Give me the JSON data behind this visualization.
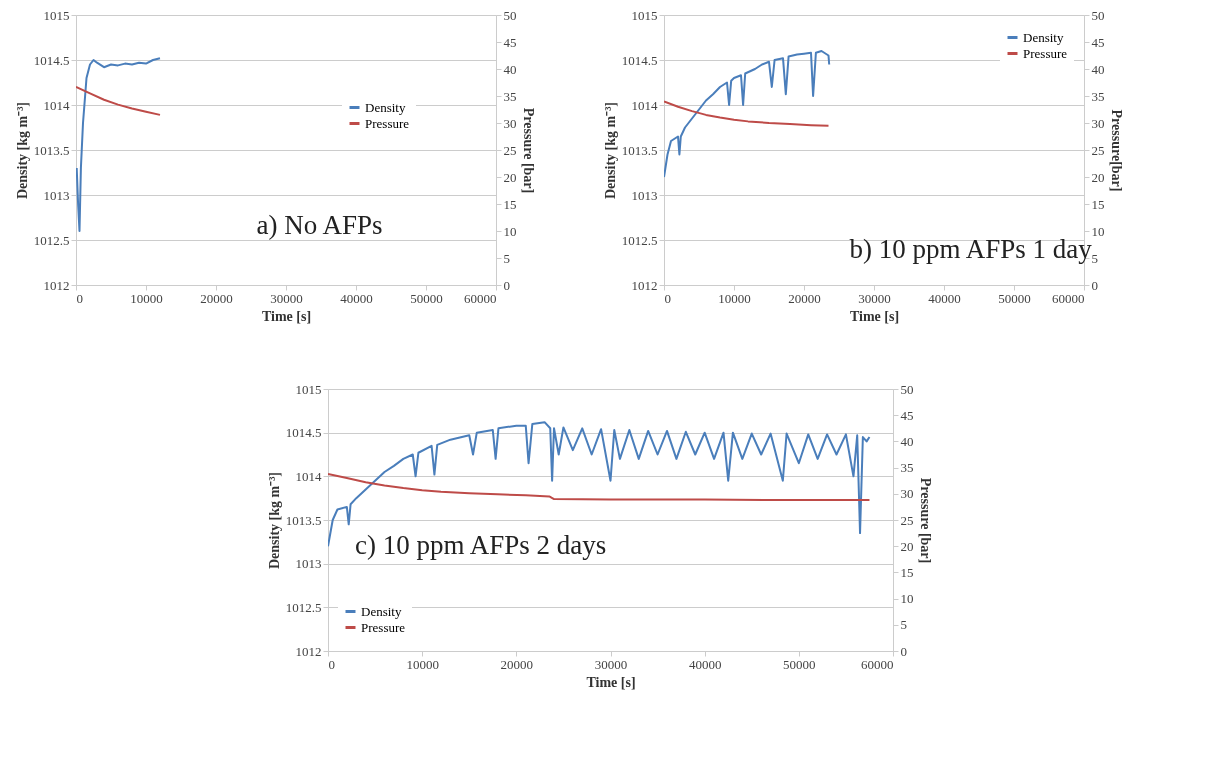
{
  "chart_data": [
    {
      "type": "line",
      "xlabel": "Time [s]",
      "ylabel": "Density [kg m⁻³]",
      "y2label": "Pressure [bar]",
      "annotations": [
        "a) No AFPs"
      ],
      "xlim": [
        0,
        60000
      ],
      "xticks": [
        0,
        10000,
        20000,
        30000,
        40000,
        50000,
        60000
      ],
      "ylim": [
        1012,
        1015
      ],
      "yticks": [
        1012,
        1012.5,
        1013,
        1013.5,
        1014,
        1014.5,
        1015
      ],
      "y2lim": [
        0,
        50
      ],
      "y2ticks": [
        0,
        5,
        10,
        15,
        20,
        25,
        30,
        35,
        40,
        45,
        50
      ],
      "grid": "y",
      "legend": "top right",
      "series": [
        {
          "name": "Density",
          "color": "#4a7ebb",
          "x": [
            100,
            300,
            500,
            700,
            1000,
            1500,
            2000,
            2500,
            3000,
            4000,
            5000,
            6000,
            7000,
            8000,
            9000,
            10000,
            11000,
            12000
          ],
          "values": [
            1013.3,
            1012.9,
            1012.6,
            1013.3,
            1013.8,
            1014.3,
            1014.45,
            1014.5,
            1014.47,
            1014.42,
            1014.45,
            1014.44,
            1014.46,
            1014.45,
            1014.47,
            1014.46,
            1014.5,
            1014.52
          ]
        },
        {
          "name": "Pressure",
          "color": "#be4b48",
          "axis": "y2",
          "x": [
            0,
            2000,
            4000,
            6000,
            8000,
            10000,
            12000
          ],
          "values": [
            36.7,
            35.5,
            34.3,
            33.4,
            32.7,
            32.1,
            31.5
          ]
        }
      ]
    },
    {
      "type": "line",
      "xlabel": "Time [s]",
      "ylabel": "Density [kg m⁻³]",
      "y2label": "Pressure[bar]",
      "annotations": [
        "b) 10 ppm AFPs 1 day"
      ],
      "xlim": [
        0,
        60000
      ],
      "xticks": [
        0,
        10000,
        20000,
        30000,
        40000,
        50000,
        60000
      ],
      "ylim": [
        1012,
        1015
      ],
      "yticks": [
        1012,
        1012.5,
        1013,
        1013.5,
        1014,
        1014.5,
        1015
      ],
      "y2lim": [
        0,
        50
      ],
      "y2ticks": [
        0,
        5,
        10,
        15,
        20,
        25,
        30,
        35,
        40,
        45,
        50
      ],
      "grid": "y",
      "legend": "top right",
      "series": [
        {
          "name": "Density",
          "color": "#4a7ebb",
          "x": [
            0,
            500,
            1000,
            2000,
            2200,
            2400,
            3000,
            4000,
            5000,
            6000,
            7000,
            8000,
            9000,
            9300,
            9600,
            10000,
            11000,
            11300,
            11600,
            13000,
            14000,
            15000,
            15400,
            15800,
            17000,
            17400,
            17800,
            19000,
            20000,
            21000,
            21300,
            21700,
            22500,
            23500,
            23600
          ],
          "values": [
            1013.2,
            1013.45,
            1013.6,
            1013.65,
            1013.45,
            1013.65,
            1013.75,
            1013.85,
            1013.95,
            1014.05,
            1014.12,
            1014.2,
            1014.25,
            1014.0,
            1014.27,
            1014.3,
            1014.33,
            1014.0,
            1014.35,
            1014.4,
            1014.45,
            1014.48,
            1014.2,
            1014.5,
            1014.52,
            1014.12,
            1014.54,
            1014.56,
            1014.57,
            1014.58,
            1014.1,
            1014.58,
            1014.6,
            1014.55,
            1014.45
          ]
        },
        {
          "name": "Pressure",
          "color": "#be4b48",
          "axis": "y2",
          "x": [
            0,
            2000,
            4000,
            6000,
            8000,
            10000,
            12000,
            15000,
            18000,
            21000,
            23500
          ],
          "values": [
            34,
            33,
            32.2,
            31.5,
            31,
            30.6,
            30.3,
            30,
            29.8,
            29.6,
            29.5
          ]
        }
      ]
    },
    {
      "type": "line",
      "xlabel": "Time [s]",
      "ylabel": "Density [kg m⁻³]",
      "y2label": "Pressure [bar]",
      "annotations": [
        "c) 10 ppm AFPs 2 days"
      ],
      "xlim": [
        0,
        60000
      ],
      "xticks": [
        0,
        10000,
        20000,
        30000,
        40000,
        50000,
        60000
      ],
      "ylim": [
        1012,
        1015
      ],
      "yticks": [
        1012,
        1012.5,
        1013,
        1013.5,
        1014,
        1014.5,
        1015
      ],
      "y2lim": [
        0,
        50
      ],
      "y2ticks": [
        0,
        5,
        10,
        15,
        20,
        25,
        30,
        35,
        40,
        45,
        50
      ],
      "grid": "y",
      "legend": "bottom left",
      "series": [
        {
          "name": "Density",
          "color": "#4a7ebb",
          "x": [
            0,
            500,
            1000,
            2000,
            2200,
            2400,
            3000,
            4000,
            5000,
            6000,
            7000,
            8000,
            9000,
            9300,
            9600,
            11000,
            11300,
            11600,
            13000,
            15000,
            15400,
            15800,
            17500,
            17800,
            18100,
            20000,
            21000,
            21300,
            21700,
            23000,
            23600,
            23800,
            24000,
            24500,
            25000,
            26000,
            27000,
            28000,
            29000,
            30000,
            30400,
            31000,
            32000,
            33000,
            34000,
            35000,
            36000,
            37000,
            38000,
            39000,
            40000,
            41000,
            42000,
            42500,
            43000,
            44000,
            45000,
            46000,
            47000,
            48300,
            48700,
            50000,
            51000,
            52000,
            53000,
            54000,
            55000,
            55800,
            56200,
            56500,
            56800,
            57200,
            57500
          ],
          "values": [
            1013.2,
            1013.5,
            1013.62,
            1013.65,
            1013.45,
            1013.68,
            1013.75,
            1013.85,
            1013.95,
            1014.05,
            1014.12,
            1014.2,
            1014.25,
            1014.0,
            1014.27,
            1014.35,
            1014.02,
            1014.36,
            1014.42,
            1014.47,
            1014.25,
            1014.5,
            1014.53,
            1014.2,
            1014.55,
            1014.58,
            1014.58,
            1014.15,
            1014.6,
            1014.62,
            1014.55,
            1013.95,
            1014.55,
            1014.25,
            1014.56,
            1014.3,
            1014.55,
            1014.25,
            1014.54,
            1013.95,
            1014.53,
            1014.2,
            1014.53,
            1014.2,
            1014.52,
            1014.25,
            1014.52,
            1014.2,
            1014.51,
            1014.25,
            1014.5,
            1014.2,
            1014.5,
            1013.95,
            1014.5,
            1014.2,
            1014.49,
            1014.25,
            1014.49,
            1013.95,
            1014.49,
            1014.15,
            1014.48,
            1014.2,
            1014.48,
            1014.25,
            1014.48,
            1014.0,
            1014.47,
            1013.35,
            1014.45,
            1014.4,
            1014.45
          ]
        },
        {
          "name": "Pressure",
          "color": "#be4b48",
          "axis": "y2",
          "x": [
            0,
            2000,
            4000,
            6000,
            8000,
            10000,
            12000,
            15000,
            18000,
            21000,
            23500,
            24000,
            30000,
            40000,
            50000,
            57500
          ],
          "values": [
            33.8,
            33,
            32.2,
            31.6,
            31.1,
            30.7,
            30.4,
            30.1,
            29.9,
            29.7,
            29.5,
            29.0,
            28.9,
            28.9,
            28.8,
            28.8
          ]
        }
      ]
    }
  ]
}
